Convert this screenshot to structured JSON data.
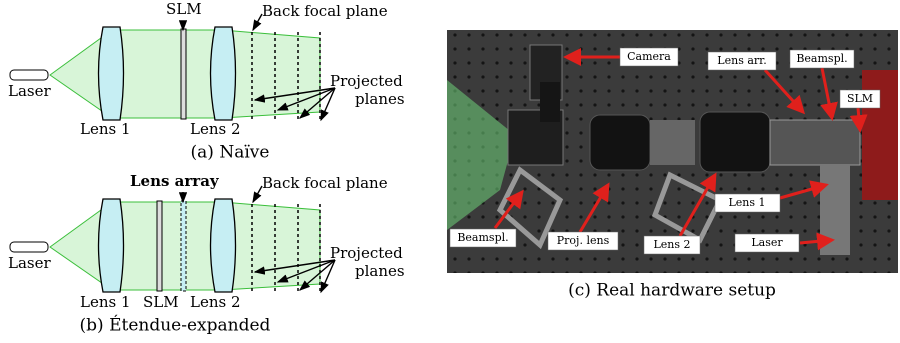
{
  "panels": [
    {
      "caption": "(a) Naïve",
      "labels": {
        "slm": "SLM",
        "back_focal_plane": "Back focal plane",
        "laser": "Laser",
        "lens1": "Lens 1",
        "lens2": "Lens 2",
        "projected": "Projected",
        "planes": "planes"
      }
    },
    {
      "caption": "(b) Étendue-expanded",
      "labels": {
        "lens_array": "Lens array",
        "back_focal_plane": "Back focal plane",
        "laser": "Laser",
        "lens1": "Lens 1",
        "slm": "SLM",
        "lens2": "Lens 2",
        "projected": "Projected",
        "planes": "planes"
      }
    },
    {
      "caption": "(c) Real hardware setup",
      "labels": {
        "camera": "Camera",
        "lens_arr": "Lens arr.",
        "beamspl_top": "Beamspl.",
        "slm": "SLM",
        "lens1": "Lens 1",
        "beamspl_left": "Beamspl.",
        "proj_lens": "Proj. lens",
        "lens2": "Lens 2",
        "laser": "Laser"
      }
    }
  ]
}
